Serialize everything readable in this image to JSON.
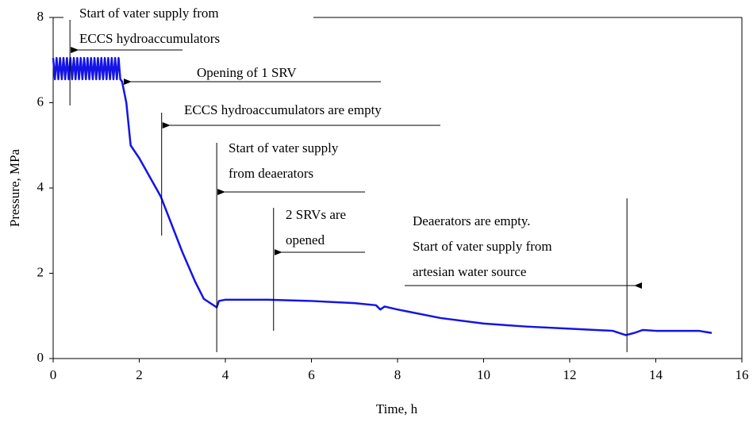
{
  "chart_data": {
    "type": "line",
    "xlabel": "Time, h",
    "ylabel": "Pressure, MPa",
    "xlim": [
      0,
      16
    ],
    "xticks": [
      0,
      2,
      4,
      6,
      8,
      10,
      12,
      14,
      16
    ],
    "ylim": [
      0,
      8
    ],
    "yticks": [
      0,
      2,
      4,
      6,
      8
    ],
    "series": [
      {
        "color": "#1414e6",
        "x": [
          0,
          0.04,
          0.08,
          0.12,
          0.16,
          0.2,
          0.24,
          0.28,
          0.32,
          0.36,
          0.4,
          0.44,
          0.48,
          0.52,
          0.56,
          0.6,
          0.64,
          0.68,
          0.72,
          0.76,
          0.8,
          0.84,
          0.88,
          0.92,
          0.96,
          1.0,
          1.04,
          1.08,
          1.12,
          1.16,
          1.2,
          1.24,
          1.28,
          1.32,
          1.36,
          1.4,
          1.44,
          1.48,
          1.52,
          1.56,
          1.6,
          1.7,
          1.8,
          2.0,
          2.5,
          3.0,
          3.3,
          3.5,
          3.8,
          3.85,
          4.0,
          5.0,
          6.0,
          7.0,
          7.5,
          7.6,
          7.7,
          8.0,
          9.0,
          10.0,
          11.0,
          12.0,
          13.0,
          13.3,
          13.5,
          13.7,
          14.0,
          15.0,
          15.3
        ],
        "values": [
          7.05,
          6.55,
          7.05,
          6.55,
          7.05,
          6.55,
          7.05,
          6.55,
          7.05,
          6.55,
          7.05,
          6.55,
          7.05,
          6.55,
          7.05,
          6.55,
          7.05,
          6.55,
          7.05,
          6.55,
          7.05,
          6.55,
          7.05,
          6.55,
          7.05,
          6.55,
          7.05,
          6.55,
          7.05,
          6.55,
          7.05,
          6.55,
          7.05,
          6.55,
          7.05,
          6.55,
          7.05,
          6.55,
          7.05,
          6.55,
          6.5,
          6.0,
          5.0,
          4.7,
          3.8,
          2.5,
          1.8,
          1.4,
          1.2,
          1.35,
          1.38,
          1.38,
          1.35,
          1.3,
          1.25,
          1.15,
          1.22,
          1.15,
          0.95,
          0.82,
          0.75,
          0.7,
          0.65,
          0.55,
          0.6,
          0.67,
          0.65,
          0.65,
          0.6
        ]
      }
    ],
    "annotations": [
      {
        "lines": [
          "Start of vater supply from",
          "ECCS hydroaccumulators"
        ],
        "x": 0.39
      },
      {
        "lines": [
          "Opening of 1 SRV"
        ],
        "x": 1.62
      },
      {
        "lines": [
          "ECCS hydroaccumulators are empty"
        ],
        "x": 2.52
      },
      {
        "lines": [
          "Start of vater supply",
          "from deaerators"
        ],
        "x": 3.8
      },
      {
        "lines": [
          "2 SRVs are",
          "opened"
        ],
        "x": 5.12
      },
      {
        "lines": [
          "Deaerators are empty.",
          "Start of vater supply from",
          "artesian water source"
        ],
        "x": 13.33
      }
    ]
  }
}
